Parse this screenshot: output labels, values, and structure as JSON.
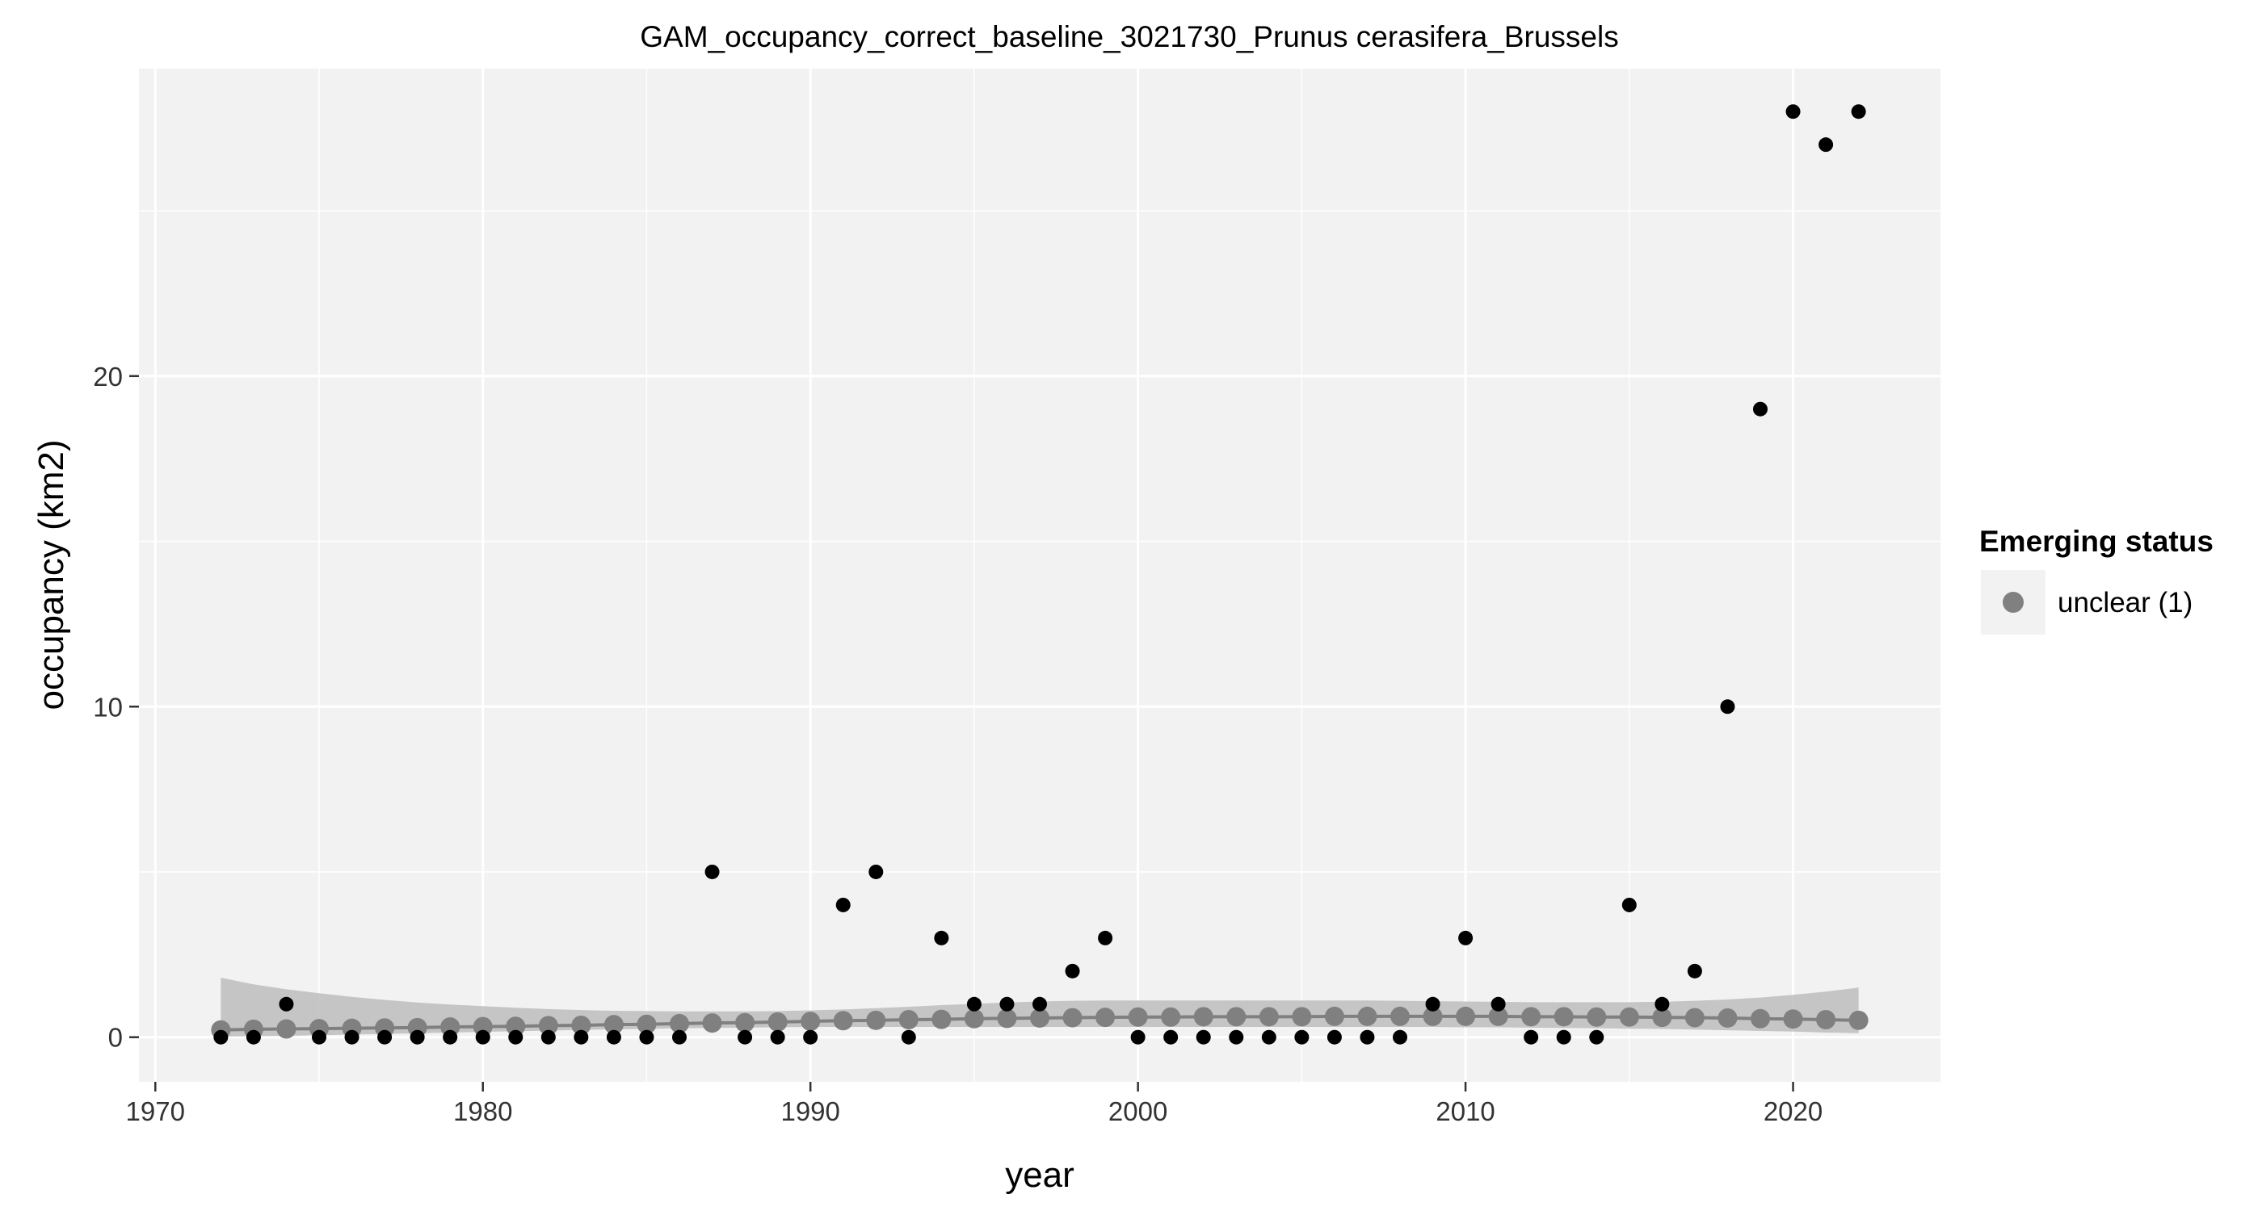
{
  "chart_data": {
    "type": "scatter",
    "title": "GAM_occupancy_correct_baseline_3021730_Prunus cerasifera_Brussels",
    "xlabel": "year",
    "ylabel": "occupancy (km2)",
    "xlim": [
      1969.5,
      2024.5
    ],
    "ylim": [
      -1.35,
      29.3
    ],
    "x_ticks": [
      1970,
      1980,
      1990,
      2000,
      2010,
      2020
    ],
    "y_ticks": [
      0,
      10,
      20
    ],
    "grid": true,
    "legend_position": "right",
    "legend_title": "Emerging status",
    "colors": {
      "panel": "#f2f2f2",
      "grid": "#ffffff",
      "observed": "#000000",
      "fitted": "#808080",
      "ribbon": "#bdbdbd"
    },
    "observed": {
      "x": [
        1972,
        1973,
        1974,
        1975,
        1976,
        1977,
        1978,
        1979,
        1980,
        1981,
        1982,
        1983,
        1984,
        1985,
        1986,
        1987,
        1988,
        1989,
        1990,
        1991,
        1992,
        1993,
        1994,
        1995,
        1996,
        1997,
        1998,
        1999,
        2000,
        2001,
        2002,
        2003,
        2004,
        2005,
        2006,
        2007,
        2008,
        2009,
        2010,
        2011,
        2012,
        2013,
        2014,
        2015,
        2016,
        2017,
        2018,
        2019,
        2020,
        2021,
        2022
      ],
      "y": [
        0,
        0,
        1,
        0,
        0,
        0,
        0,
        0,
        0,
        0,
        0,
        0,
        0,
        0,
        0,
        5,
        0,
        0,
        0,
        4,
        5,
        0,
        3,
        1,
        1,
        1,
        2,
        3,
        0,
        0,
        0,
        0,
        0,
        0,
        0,
        0,
        0,
        1,
        3,
        1,
        0,
        0,
        0,
        4,
        1,
        2,
        10,
        19,
        28,
        27,
        28
      ]
    },
    "series": [
      {
        "name": "unclear (1)",
        "x": [
          1972,
          1973,
          1974,
          1975,
          1976,
          1977,
          1978,
          1979,
          1980,
          1981,
          1982,
          1983,
          1984,
          1985,
          1986,
          1987,
          1988,
          1989,
          1990,
          1991,
          1992,
          1993,
          1994,
          1995,
          1996,
          1997,
          1998,
          1999,
          2000,
          2001,
          2002,
          2003,
          2004,
          2005,
          2006,
          2007,
          2008,
          2009,
          2010,
          2011,
          2012,
          2013,
          2014,
          2015,
          2016,
          2017,
          2018,
          2019,
          2020,
          2021,
          2022
        ],
        "y": [
          0.22,
          0.24,
          0.25,
          0.26,
          0.27,
          0.28,
          0.29,
          0.31,
          0.32,
          0.33,
          0.35,
          0.36,
          0.38,
          0.39,
          0.41,
          0.43,
          0.44,
          0.46,
          0.48,
          0.5,
          0.51,
          0.53,
          0.54,
          0.56,
          0.57,
          0.58,
          0.59,
          0.6,
          0.61,
          0.61,
          0.62,
          0.62,
          0.62,
          0.62,
          0.63,
          0.63,
          0.63,
          0.63,
          0.63,
          0.63,
          0.62,
          0.62,
          0.61,
          0.61,
          0.6,
          0.59,
          0.58,
          0.56,
          0.55,
          0.53,
          0.51
        ],
        "lower": [
          0.02,
          0.03,
          0.04,
          0.06,
          0.08,
          0.1,
          0.12,
          0.14,
          0.16,
          0.18,
          0.2,
          0.22,
          0.24,
          0.25,
          0.27,
          0.28,
          0.29,
          0.3,
          0.31,
          0.31,
          0.31,
          0.31,
          0.31,
          0.31,
          0.31,
          0.31,
          0.31,
          0.31,
          0.31,
          0.31,
          0.31,
          0.31,
          0.31,
          0.31,
          0.31,
          0.31,
          0.31,
          0.31,
          0.3,
          0.3,
          0.29,
          0.28,
          0.27,
          0.26,
          0.25,
          0.23,
          0.21,
          0.19,
          0.17,
          0.14,
          0.12
        ],
        "upper": [
          1.8,
          1.6,
          1.45,
          1.33,
          1.22,
          1.13,
          1.05,
          0.99,
          0.94,
          0.89,
          0.85,
          0.82,
          0.8,
          0.79,
          0.78,
          0.78,
          0.78,
          0.79,
          0.81,
          0.84,
          0.88,
          0.92,
          0.97,
          1.01,
          1.05,
          1.08,
          1.1,
          1.11,
          1.11,
          1.11,
          1.11,
          1.11,
          1.11,
          1.11,
          1.11,
          1.11,
          1.1,
          1.09,
          1.08,
          1.07,
          1.06,
          1.06,
          1.06,
          1.06,
          1.07,
          1.1,
          1.14,
          1.2,
          1.28,
          1.38,
          1.5
        ]
      }
    ]
  }
}
